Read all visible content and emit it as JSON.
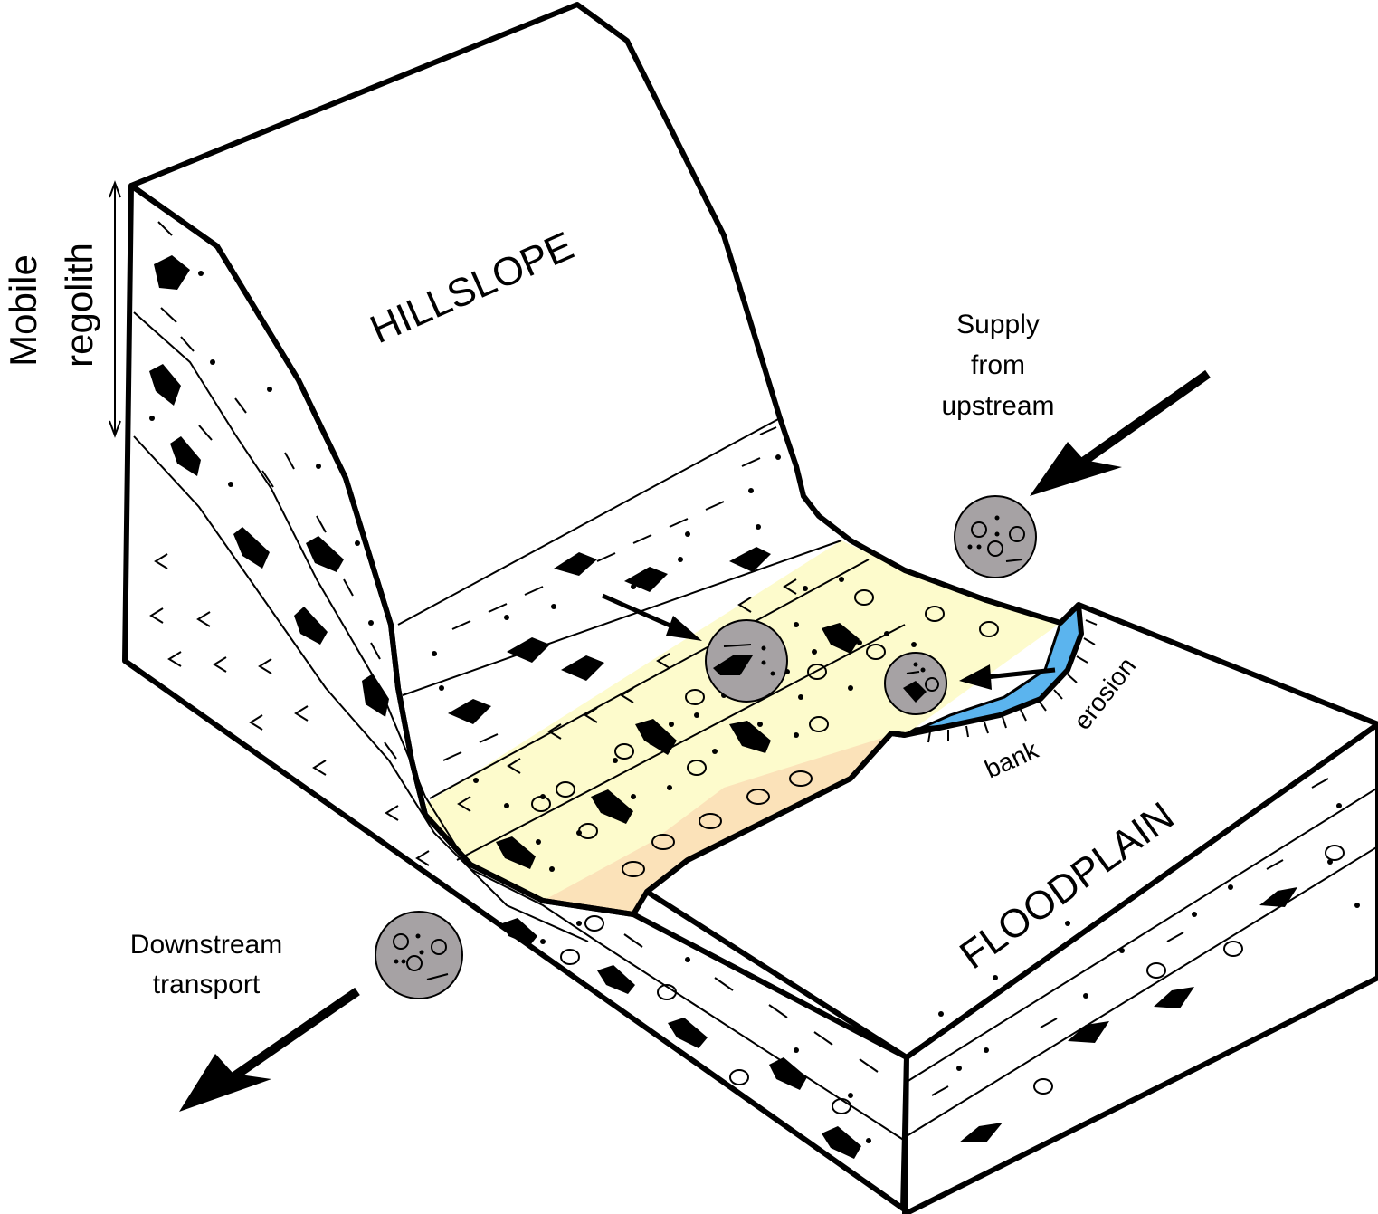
{
  "labels": {
    "hillslope": "HILLSLOPE",
    "floodplain": "FLOODPLAIN",
    "mobile": "Mobile",
    "regolith": "regolith",
    "supply_line1": "Supply",
    "supply_line2": "from",
    "supply_line3": "upstream",
    "downstream_line1": "Downstream",
    "downstream_line2": "transport",
    "bank": "bank",
    "erosion": "erosion"
  },
  "colors": {
    "outline": "#000000",
    "channel_fill": "#fdfbcc",
    "bar_fill": "#fbe2b9",
    "bank_erosion": "#5bb4ee",
    "sediment_parcel": "#a6a2a4",
    "background": "#ffffff"
  }
}
